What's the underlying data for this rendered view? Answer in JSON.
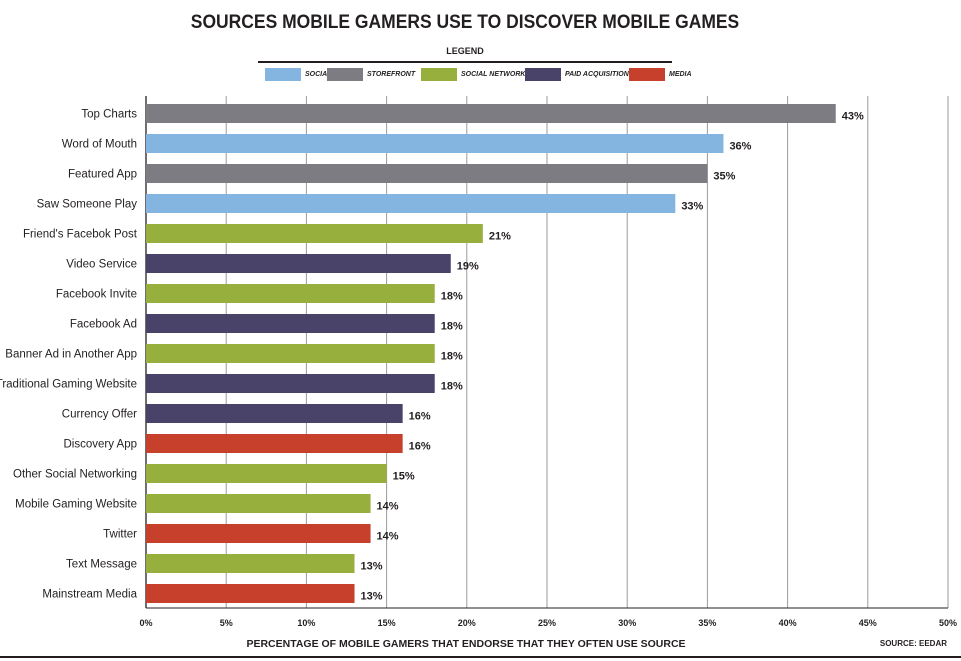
{
  "chart_data": {
    "type": "bar",
    "orientation": "horizontal",
    "title": "SOURCES MOBILE GAMERS USE TO DISCOVER MOBILE GAMES",
    "legend_title": "LEGEND",
    "legend_placement": "top",
    "legend": [
      {
        "label": "SOCIAL",
        "color": "#84b5e1"
      },
      {
        "label": "STOREFRONT",
        "color": "#7c7c82"
      },
      {
        "label": "SOCIAL NETWORK",
        "color": "#97af3c"
      },
      {
        "label": "PAID ACQUISITION",
        "color": "#4a4369"
      },
      {
        "label": "MEDIA",
        "color": "#c6402c"
      }
    ],
    "categories": [
      "Top Charts",
      "Word of Mouth",
      "Featured App",
      "Saw Someone Play",
      "Friend's Facebok Post",
      "Video Service",
      "Facebook Invite",
      "Facebook Ad",
      "Banner Ad in Another App",
      "Traditional Gaming Website",
      "Currency Offer",
      "Discovery App",
      "Other Social Networking",
      "Mobile Gaming Website",
      "Twitter",
      "Text Message",
      "Mainstream Media"
    ],
    "values": [
      43,
      36,
      35,
      33,
      21,
      19,
      18,
      18,
      18,
      18,
      16,
      16,
      15,
      14,
      14,
      13,
      13
    ],
    "value_labels": [
      "43%",
      "36%",
      "35%",
      "33%",
      "21%",
      "19%",
      "18%",
      "18%",
      "18%",
      "18%",
      "16%",
      "16%",
      "15%",
      "14%",
      "14%",
      "13%",
      "13%"
    ],
    "groups": [
      "STOREFRONT",
      "SOCIAL",
      "STOREFRONT",
      "SOCIAL",
      "SOCIAL NETWORK",
      "PAID ACQUISITION",
      "SOCIAL NETWORK",
      "PAID ACQUISITION",
      "SOCIAL NETWORK",
      "PAID ACQUISITION",
      "PAID ACQUISITION",
      "MEDIA",
      "SOCIAL NETWORK",
      "SOCIAL NETWORK",
      "MEDIA",
      "SOCIAL NETWORK",
      "MEDIA"
    ],
    "xlim": [
      0,
      50
    ],
    "xticks": [
      0,
      5,
      10,
      15,
      20,
      25,
      30,
      35,
      40,
      45,
      50
    ],
    "xtick_labels": [
      "0%",
      "5%",
      "10%",
      "15%",
      "20%",
      "25%",
      "30%",
      "35%",
      "40%",
      "45%",
      "50%"
    ],
    "xlabel": "PERCENTAGE OF MOBILE GAMERS THAT ENDORSE THAT THEY OFTEN USE SOURCE",
    "ylabel": "",
    "grid": true,
    "source": "SOURCE: EEDAR"
  }
}
